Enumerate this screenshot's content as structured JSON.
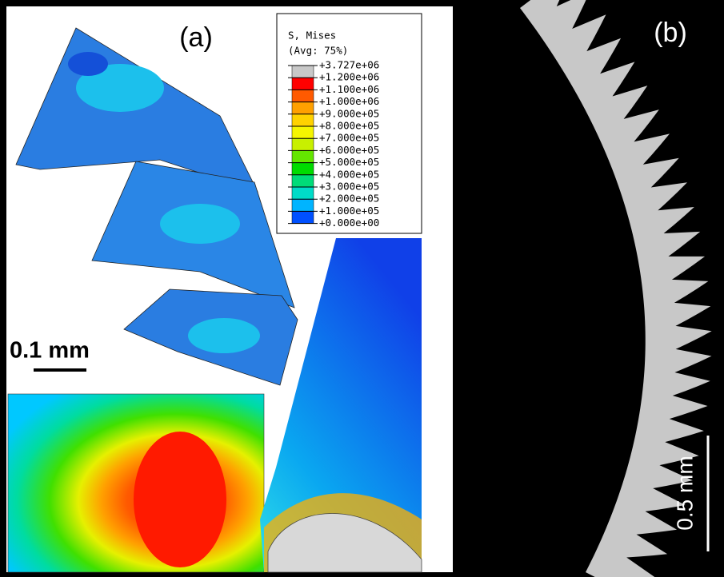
{
  "panel_a": {
    "label": "(a)",
    "legend": {
      "title": "S, Mises",
      "subtitle": "(Avg: 75%)",
      "entries": [
        "+3.727e+06",
        "+1.200e+06",
        "+1.100e+06",
        "+1.000e+06",
        "+9.000e+05",
        "+8.000e+05",
        "+7.000e+05",
        "+6.000e+05",
        "+5.000e+05",
        "+4.000e+05",
        "+3.000e+05",
        "+2.000e+05",
        "+1.000e+05",
        "+0.000e+00"
      ]
    },
    "scale_bar": "0.1 mm"
  },
  "panel_b": {
    "label": "(b)",
    "scale_bar": "0.5 mm"
  }
}
